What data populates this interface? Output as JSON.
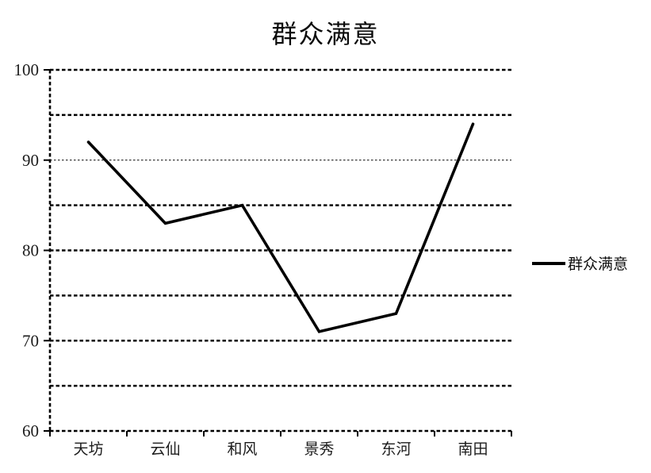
{
  "page": {
    "background_color": "#ffffff",
    "text_color": "#1c1c1c",
    "line_color": "#000000"
  },
  "chart_data": {
    "type": "line",
    "title": "群众满意",
    "categories": [
      "天坊",
      "云仙",
      "和风",
      "景秀",
      "东河",
      "南田"
    ],
    "series": [
      {
        "name": "群众满意",
        "values": [
          92,
          83,
          85,
          71,
          73,
          94
        ],
        "color": "#000000"
      }
    ],
    "xlabel": "",
    "ylabel": "",
    "ylim": [
      60,
      100
    ],
    "y_tick_labels": [
      "60",
      "70",
      "80",
      "90",
      "100"
    ],
    "y_label_step": 10,
    "y_grid_step": 5,
    "fine_gridline_values": [
      90
    ],
    "grid": "horizontal-dashed",
    "axis_style": "dashed-black",
    "legend_position": "right",
    "legend_entries": [
      "群众满意"
    ]
  }
}
